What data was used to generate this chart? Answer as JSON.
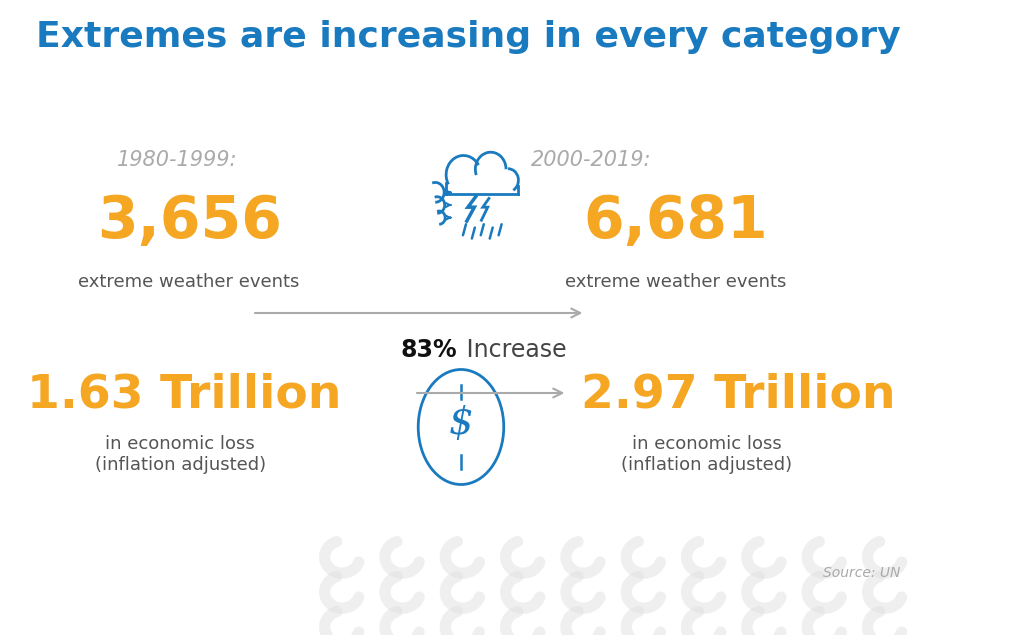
{
  "title": "Extremes are increasing in every category",
  "title_color": "#1a7abf",
  "title_fontsize": 26,
  "background_color": "#ffffff",
  "period1_label": "1980-1999:",
  "period2_label": "2000-2019:",
  "period_color": "#aaaaaa",
  "period_fontsize": 15,
  "events1": "3,656",
  "events2": "6,681",
  "events_color": "#f5a623",
  "events_fontsize": 42,
  "events_sub": "extreme weather events",
  "events_sub_color": "#555555",
  "events_sub_fontsize": 13,
  "increase_pct": "83%",
  "increase_text": " Increase",
  "increase_pct_color": "#111111",
  "increase_text_color": "#444444",
  "increase_fontsize": 17,
  "loss1": "1.63 Trillion",
  "loss2": "2.97 Trillion",
  "loss_color": "#f5a623",
  "loss_fontsize": 34,
  "loss_sub": "in economic loss\n(inflation adjusted)",
  "loss_sub_color": "#555555",
  "loss_sub_fontsize": 13,
  "arrow_color": "#aaaaaa",
  "icon_color": "#1a7abf",
  "source_text": "Source: UN",
  "source_color": "#aaaaaa",
  "source_fontsize": 10,
  "watermark_color": "#e0e0e0"
}
